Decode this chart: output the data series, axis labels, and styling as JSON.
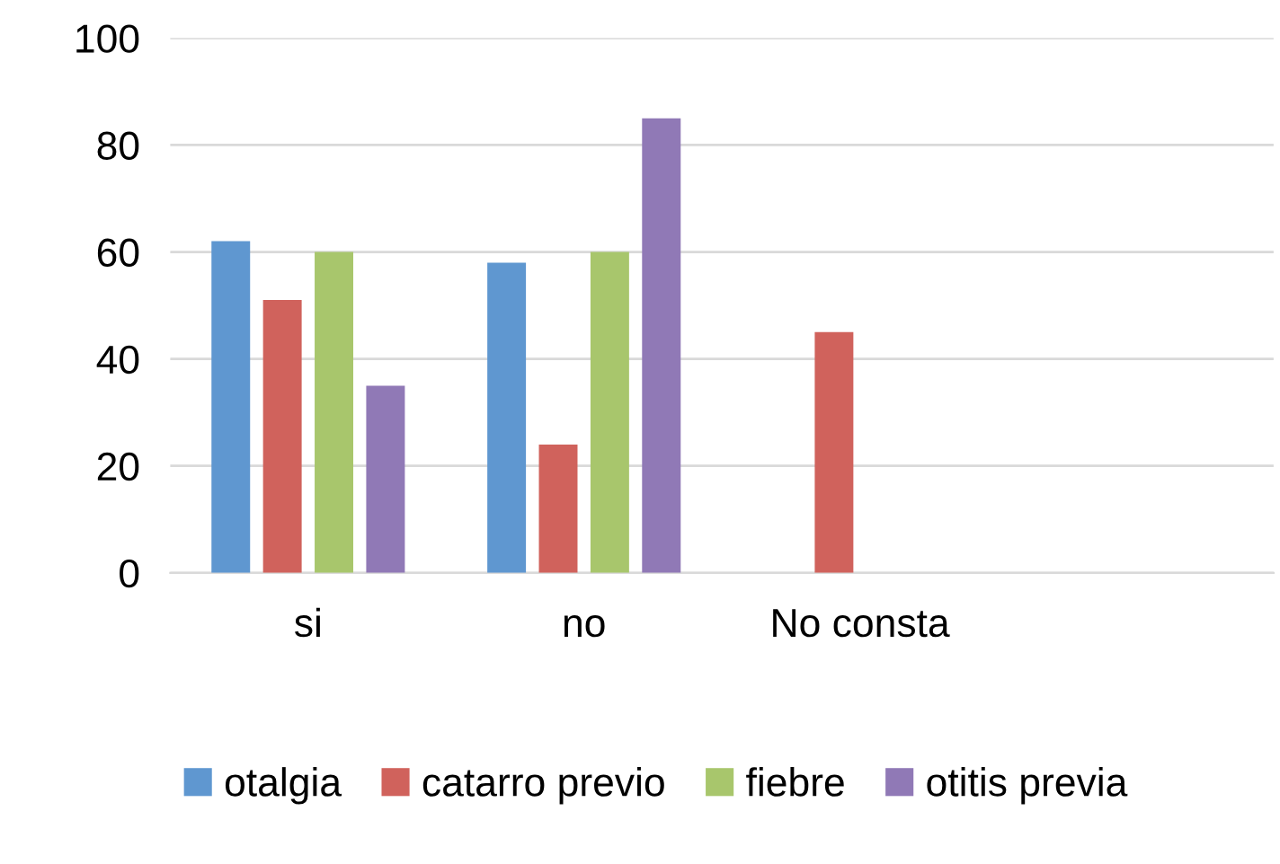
{
  "chart_data": {
    "type": "bar",
    "categories": [
      "si",
      "no",
      "No consta",
      null
    ],
    "series": [
      {
        "name": "otalgia",
        "color": "#5f97d0",
        "values": [
          62,
          58,
          null,
          null
        ]
      },
      {
        "name": "catarro previo",
        "color": "#d0625c",
        "values": [
          51,
          24,
          45,
          null
        ]
      },
      {
        "name": "fiebre",
        "color": "#a8c66c",
        "values": [
          60,
          60,
          null,
          null
        ]
      },
      {
        "name": "otitis previa",
        "color": "#9079b6",
        "values": [
          35,
          85,
          null,
          null
        ]
      }
    ],
    "ylim": [
      0,
      100
    ],
    "yticks": [
      0,
      20,
      40,
      60,
      80,
      100
    ],
    "grid": "y",
    "legend": "bottom"
  }
}
